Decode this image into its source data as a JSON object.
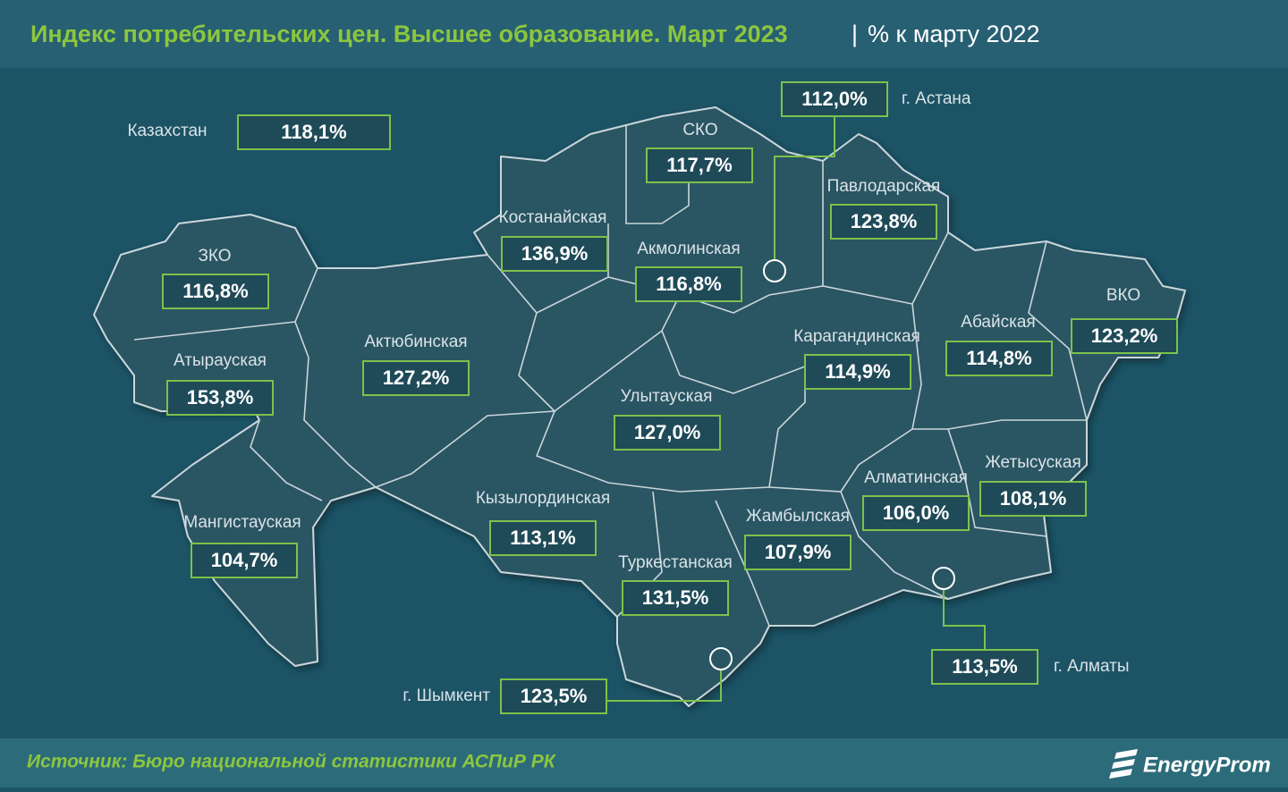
{
  "header": {
    "title": "Индекс потребительских цен. Высшее образование. Март 2023",
    "subtitle": "% к марту 2022"
  },
  "country": {
    "name": "Казахстан",
    "value": "118,1%"
  },
  "regions": [
    {
      "name": "ЗКО",
      "value": "116,8%"
    },
    {
      "name": "Атырауская",
      "value": "153,8%"
    },
    {
      "name": "Мангистауская",
      "value": "104,7%"
    },
    {
      "name": "Актюбинская",
      "value": "127,2%"
    },
    {
      "name": "Костанайская",
      "value": "136,9%"
    },
    {
      "name": "СКО",
      "value": "117,7%"
    },
    {
      "name": "Акмолинская",
      "value": "116,8%"
    },
    {
      "name": "Павлодарская",
      "value": "123,8%"
    },
    {
      "name": "ВКО",
      "value": "123,2%"
    },
    {
      "name": "Абайская",
      "value": "114,8%"
    },
    {
      "name": "Карагандинская",
      "value": "114,9%"
    },
    {
      "name": "Улытауская",
      "value": "127,0%"
    },
    {
      "name": "Кызылординская",
      "value": "113,1%"
    },
    {
      "name": "Туркестанская",
      "value": "131,5%"
    },
    {
      "name": "Жамбылская",
      "value": "107,9%"
    },
    {
      "name": "Алматинская",
      "value": "106,0%"
    },
    {
      "name": "Жетысуская",
      "value": "108,1%"
    }
  ],
  "cities": [
    {
      "name": "г. Астана",
      "value": "112,0%"
    },
    {
      "name": "г. Шымкент",
      "value": "123,5%"
    },
    {
      "name": "г. Алматы",
      "value": "113,5%"
    }
  ],
  "footer": {
    "source": "Источник: Бюро национальной статистики АСПиР РК",
    "logo": "EnergyProm"
  }
}
